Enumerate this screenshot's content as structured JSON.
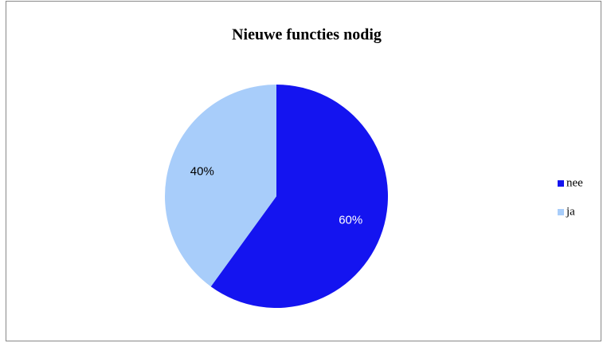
{
  "chart_data": {
    "type": "pie",
    "title": "Nieuwe functies nodig",
    "categories": [
      "nee",
      "ja"
    ],
    "values": [
      60,
      40
    ],
    "value_labels": [
      "60%",
      "40%"
    ],
    "colors": [
      "#1414f0",
      "#a8cdfa"
    ],
    "legend": "right"
  }
}
